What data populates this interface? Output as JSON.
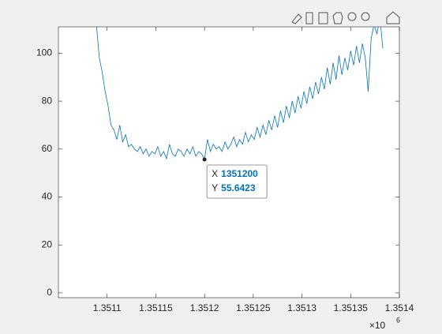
{
  "chart_data": {
    "type": "line",
    "x": [
      1351086,
      1351089,
      1351092,
      1351095,
      1351098,
      1351101,
      1351104,
      1351107,
      1351110,
      1351113,
      1351116,
      1351119,
      1351122,
      1351125,
      1351128,
      1351131,
      1351134,
      1351137,
      1351140,
      1351143,
      1351146,
      1351149,
      1351152,
      1351155,
      1351158,
      1351161,
      1351164,
      1351167,
      1351170,
      1351173,
      1351176,
      1351179,
      1351182,
      1351185,
      1351188,
      1351191,
      1351194,
      1351197,
      1351200,
      1351203,
      1351206,
      1351209,
      1351212,
      1351215,
      1351218,
      1351221,
      1351224,
      1351227,
      1351230,
      1351233,
      1351236,
      1351239,
      1351242,
      1351245,
      1351248,
      1351251,
      1351254,
      1351257,
      1351260,
      1351263,
      1351266,
      1351269,
      1351272,
      1351275,
      1351278,
      1351281,
      1351284,
      1351287,
      1351290,
      1351293,
      1351296,
      1351299,
      1351302,
      1351305,
      1351308,
      1351311,
      1351314,
      1351317,
      1351320,
      1351323,
      1351326,
      1351329,
      1351332,
      1351335,
      1351338,
      1351341,
      1351344,
      1351347,
      1351350,
      1351353,
      1351356,
      1351359,
      1351362,
      1351365,
      1351368,
      1351371,
      1351374,
      1351377,
      1351380,
      1351383
    ],
    "series": [
      {
        "color": "#0072bd",
        "values": [
          125,
          112,
          98,
          92,
          84,
          78,
          70,
          68,
          64,
          70,
          63,
          66,
          61,
          62,
          60,
          59,
          61,
          58,
          60,
          57,
          59,
          58,
          61,
          57,
          59,
          56,
          62,
          58,
          57,
          60,
          59,
          57,
          60,
          58,
          61,
          57,
          59,
          58,
          55.6423,
          64,
          59,
          62,
          60,
          61,
          59,
          63,
          60,
          62,
          65,
          61,
          64,
          62,
          67,
          63,
          66,
          64,
          69,
          65,
          70,
          66,
          72,
          68,
          74,
          69,
          76,
          71,
          78,
          73,
          80,
          75,
          82,
          77,
          84,
          79,
          86,
          81,
          88,
          83,
          90,
          85,
          94,
          87,
          96,
          89,
          99,
          91,
          98,
          93,
          101,
          95,
          103,
          96,
          104,
          98,
          84,
          106,
          112,
          108,
          115,
          102
        ]
      }
    ],
    "xlim": [
      1351050,
      1351400
    ],
    "ylim": [
      -2,
      111
    ],
    "xticks": [
      {
        "value": 1351100,
        "label": "1.3511"
      },
      {
        "value": 1351150,
        "label": "1.35115"
      },
      {
        "value": 1351200,
        "label": "1.3512"
      },
      {
        "value": 1351250,
        "label": "1.35125"
      },
      {
        "value": 1351300,
        "label": "1.3513"
      },
      {
        "value": 1351350,
        "label": "1.35135"
      },
      {
        "value": 1351400,
        "label": "1.3514"
      }
    ],
    "yticks": [
      0,
      20,
      40,
      60,
      80,
      100
    ],
    "x_exponent_base": "×10",
    "x_exponent": "6",
    "datatip": {
      "x_label": "X",
      "y_label": "Y",
      "point": 38
    }
  }
}
